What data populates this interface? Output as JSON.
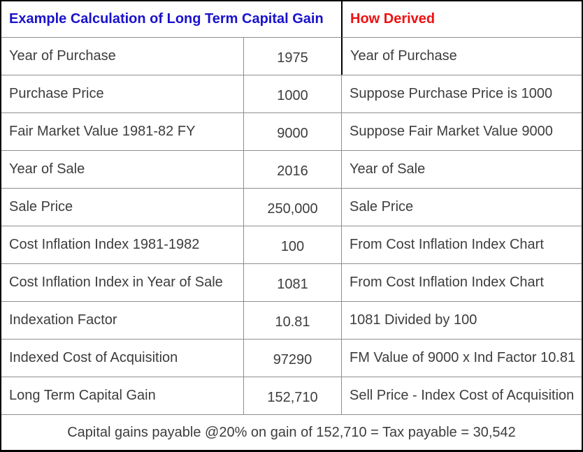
{
  "table": {
    "header": {
      "left": "Example Calculation of Long Term Capital Gain",
      "right": "How Derived"
    },
    "rows": [
      {
        "label": "Year of Purchase",
        "value": "1975",
        "derived": "Year of Purchase"
      },
      {
        "label": "Purchase Price",
        "value": "1000",
        "derived": "Suppose Purchase Price is 1000"
      },
      {
        "label": "Fair Market Value 1981-82 FY",
        "value": "9000",
        "derived": "Suppose Fair Market Value 9000"
      },
      {
        "label": "Year of Sale",
        "value": "2016",
        "derived": "Year of Sale"
      },
      {
        "label": "Sale Price",
        "value": "250,000",
        "derived": "Sale Price"
      },
      {
        "label": "Cost Inflation Index 1981-1982",
        "value": "100",
        "derived": "From Cost Inflation Index Chart"
      },
      {
        "label": "Cost Inflation Index in Year of Sale",
        "value": "1081",
        "derived": "From Cost Inflation Index Chart"
      },
      {
        "label": "Indexation Factor",
        "value": "10.81",
        "derived": "1081 Divided by 100"
      },
      {
        "label": "Indexed Cost of Acquisition",
        "value": "97290",
        "derived": "FM Value of 9000 x Ind Factor 10.81"
      },
      {
        "label": "Long Term Capital Gain",
        "value": "152,710",
        "derived": "Sell Price - Index Cost of Acquisition"
      }
    ],
    "footer": "Capital gains payable @20% on gain of 152,710 = Tax payable = 30,542",
    "colors": {
      "title": "#1a12cb",
      "how_derived": "#ed1111",
      "body_text": "#3d3d3d",
      "grid_line": "#8e8e8e",
      "outer_border": "#000000"
    }
  }
}
